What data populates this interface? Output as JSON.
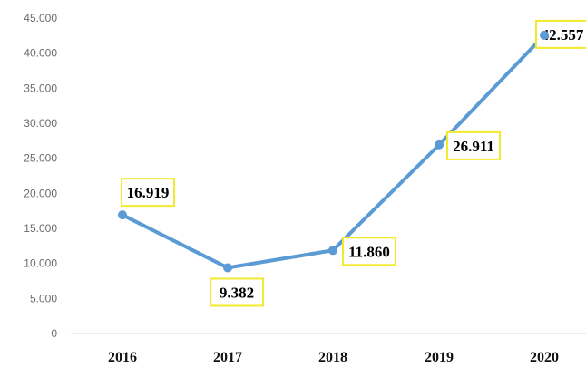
{
  "chart_data": {
    "type": "line",
    "categories": [
      "2016",
      "2017",
      "2018",
      "2019",
      "2020"
    ],
    "values": [
      16919,
      9382,
      11860,
      26911,
      42557
    ],
    "data_labels": [
      "16.919",
      "9.382",
      "11.860",
      "26.911",
      "42.557"
    ],
    "y_ticks": [
      "0",
      "5.000",
      "10.000",
      "15.000",
      "20.000",
      "25.000",
      "30.000",
      "35.000",
      "40.000",
      "45.000"
    ],
    "ylim": [
      0,
      45000
    ],
    "grid": false,
    "legend": "none",
    "colors": {
      "line": "#5b9bd5",
      "label_border": "#f2ea2e",
      "axis": "#d9d9d9"
    }
  }
}
